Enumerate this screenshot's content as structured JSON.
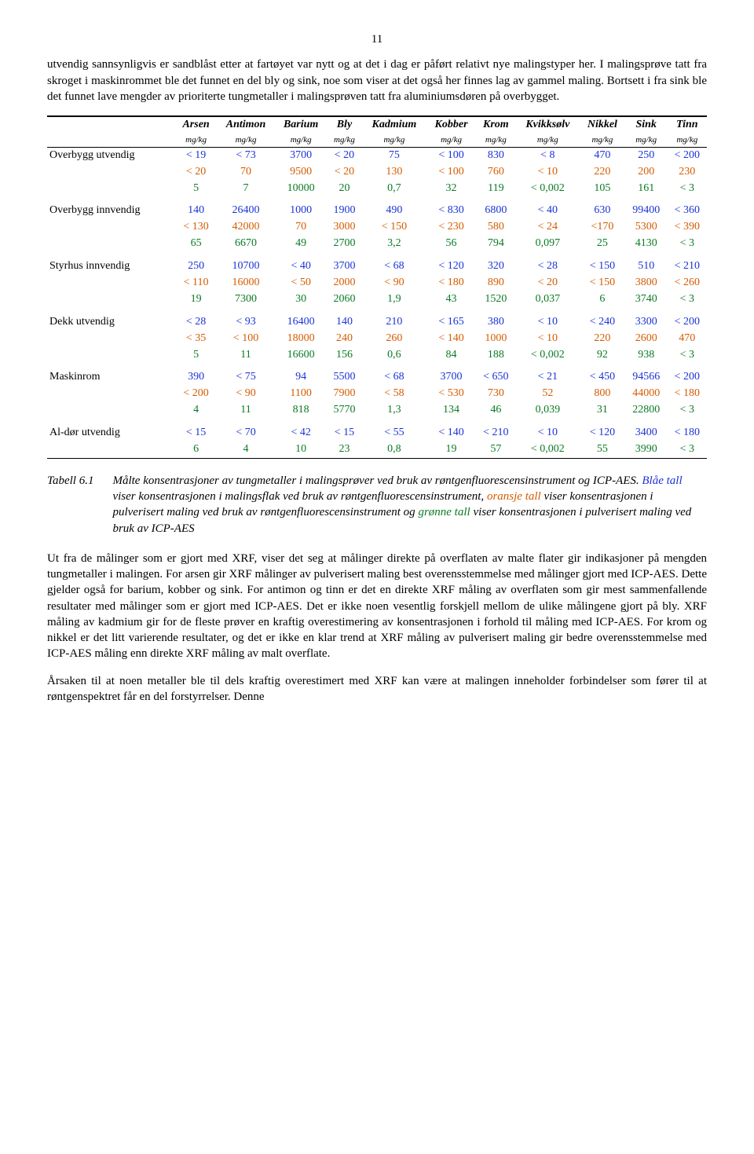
{
  "page_number": "11",
  "para1": "utvendig sannsynligvis er sandblåst etter at fartøyet var nytt og at det i dag er påført relativt nye malingstyper her. I malingsprøve tatt fra skroget i maskinrommet ble det funnet en del bly og sink, noe som viser at det også her finnes lag av gammel maling. Bortsett i fra sink ble det funnet lave mengder av prioriterte tungmetaller i malingsprøven tatt fra aluminiumsdøren på overbygget.",
  "table": {
    "headers": [
      "Arsen",
      "Antimon",
      "Barium",
      "Bly",
      "Kadmium",
      "Kobber",
      "Krom",
      "Kvikksølv",
      "Nikkel",
      "Sink",
      "Tinn"
    ],
    "unit": "mg/kg",
    "rows": [
      {
        "label": "Overbygg utvendig",
        "blue": [
          "< 19",
          "< 73",
          "3700",
          "< 20",
          "75",
          "< 100",
          "830",
          "< 8",
          "470",
          "250",
          "< 200"
        ],
        "orange": [
          "< 20",
          "70",
          "9500",
          "< 20",
          "130",
          "< 100",
          "760",
          "< 10",
          "220",
          "200",
          "230"
        ],
        "green": [
          "5",
          "7",
          "10000",
          "20",
          "0,7",
          "32",
          "119",
          "< 0,002",
          "105",
          "161",
          "< 3"
        ]
      },
      {
        "label": "Overbygg innvendig",
        "blue": [
          "140",
          "26400",
          "1000",
          "1900",
          "490",
          "< 830",
          "6800",
          "< 40",
          "630",
          "99400",
          "< 360"
        ],
        "orange": [
          "< 130",
          "42000",
          "70",
          "3000",
          "< 150",
          "< 230",
          "580",
          "< 24",
          "<170",
          "5300",
          "< 390"
        ],
        "green": [
          "65",
          "6670",
          "49",
          "2700",
          "3,2",
          "56",
          "794",
          "0,097",
          "25",
          "4130",
          "< 3"
        ]
      },
      {
        "label": "Styrhus innvendig",
        "blue": [
          "250",
          "10700",
          "< 40",
          "3700",
          "< 68",
          "< 120",
          "320",
          "< 28",
          "< 150",
          "510",
          "< 210"
        ],
        "orange": [
          "< 110",
          "16000",
          "< 50",
          "2000",
          "< 90",
          "< 180",
          "890",
          "< 20",
          "< 150",
          "3800",
          "< 260"
        ],
        "green": [
          "19",
          "7300",
          "30",
          "2060",
          "1,9",
          "43",
          "1520",
          "0,037",
          "6",
          "3740",
          "< 3"
        ]
      },
      {
        "label": "Dekk utvendig",
        "blue": [
          "< 28",
          "< 93",
          "16400",
          "140",
          "210",
          "< 165",
          "380",
          "< 10",
          "< 240",
          "3300",
          "< 200"
        ],
        "orange": [
          "< 35",
          "< 100",
          "18000",
          "240",
          "260",
          "< 140",
          "1000",
          "< 10",
          "220",
          "2600",
          "470"
        ],
        "green": [
          "5",
          "11",
          "16600",
          "156",
          "0,6",
          "84",
          "188",
          "< 0,002",
          "92",
          "938",
          "< 3"
        ]
      },
      {
        "label": "Maskinrom",
        "blue": [
          "390",
          "< 75",
          "94",
          "5500",
          "< 68",
          "3700",
          "< 650",
          "< 21",
          "< 450",
          "94566",
          "< 200"
        ],
        "orange": [
          "< 200",
          "< 90",
          "1100",
          "7900",
          "< 58",
          "< 530",
          "730",
          "52",
          "800",
          "44000",
          "< 180"
        ],
        "green": [
          "4",
          "11",
          "818",
          "5770",
          "1,3",
          "134",
          "46",
          "0,039",
          "31",
          "22800",
          "< 3"
        ]
      },
      {
        "label": "Al-dør utvendig",
        "blue": [
          "< 15",
          "< 70",
          "< 42",
          "< 15",
          "< 55",
          "< 140",
          "< 210",
          "< 10",
          "< 120",
          "3400",
          "< 180"
        ],
        "green": [
          "6",
          "4",
          "10",
          "23",
          "0,8",
          "19",
          "57",
          "< 0,002",
          "55",
          "3990",
          "< 3"
        ]
      }
    ]
  },
  "caption_label": "Tabell 6.1",
  "caption_a": "Målte konsentrasjoner av tungmetaller i malingsprøver ved bruk av røntgenfluorescensinstrument og ICP-AES.",
  "caption_b_blue": "Blåe tall",
  "caption_b": " viser konsentrasjonen i malingsflak ved bruk av røntgenfluorescensinstrument, ",
  "caption_c_orange": "oransje tall",
  "caption_c": " viser konsentrasjonen i pulverisert maling ved bruk av røntgenfluorescensinstrument og ",
  "caption_d_green": "grønne tall",
  "caption_d": " viser konsentrasjonen i pulverisert maling ved bruk av ICP-AES",
  "para2": "Ut fra de målinger som er gjort med XRF, viser det seg at målinger direkte på overflaten av malte flater gir indikasjoner på mengden tungmetaller i malingen. For arsen gir XRF målinger av pulverisert maling best overensstemmelse med målinger gjort med ICP-AES. Dette gjelder også for barium, kobber og sink. For antimon og tinn er det en direkte XRF måling av overflaten som gir mest sammenfallende resultater med målinger som er gjort med ICP-AES. Det er ikke noen vesentlig forskjell mellom de ulike målingene gjort på bly. XRF måling av kadmium gir for de fleste prøver en kraftig overestimering av konsentrasjonen i forhold til måling med ICP-AES. For krom og nikkel er det litt varierende resultater, og det er ikke en klar trend at XRF måling av pulverisert maling gir bedre overensstemmelse med ICP-AES måling enn direkte XRF måling av malt overflate.",
  "para3": "Årsaken til at noen metaller ble til dels kraftig overestimert med XRF kan være at malingen inneholder forbindelser som fører til at røntgenspektret får en del forstyrrelser. Denne"
}
